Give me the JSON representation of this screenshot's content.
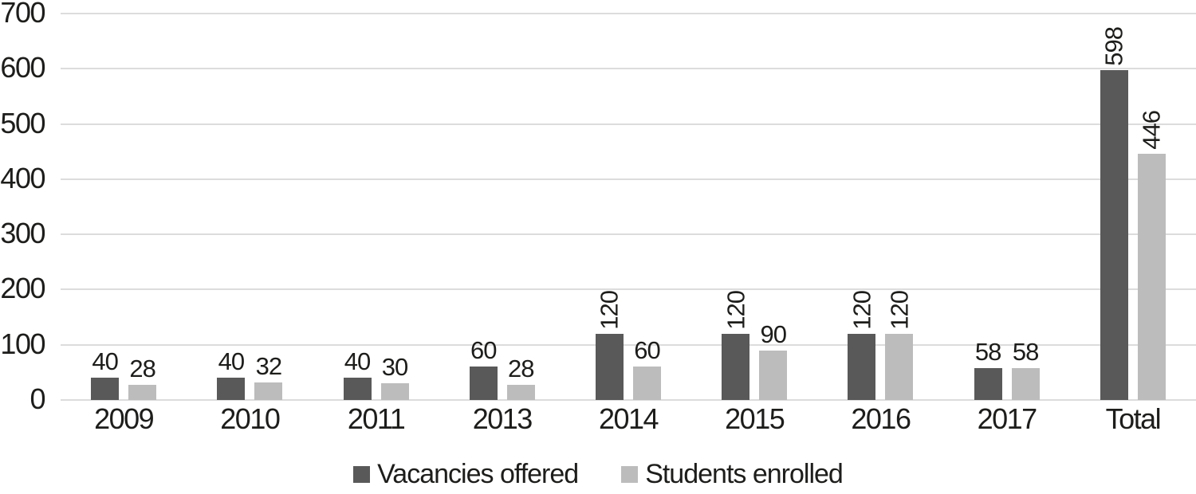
{
  "figure": {
    "background": "#ffffff",
    "text_color": "#1d1d1b",
    "gridline_color": "#dcdcdc"
  },
  "chart_data": {
    "type": "bar",
    "title": "",
    "categories": [
      "2009",
      "2010",
      "2011",
      "2013",
      "2014",
      "2015",
      "2016",
      "2017",
      "Total"
    ],
    "series": [
      {
        "name": "Vacancies offered",
        "color": "#595959",
        "values": [
          40,
          40,
          40,
          60,
          120,
          120,
          120,
          58,
          598
        ]
      },
      {
        "name": "Students enrolled",
        "color": "#bcbcbc",
        "values": [
          28,
          32,
          30,
          28,
          60,
          90,
          120,
          58,
          446
        ]
      }
    ],
    "y_axis": {
      "min": 0,
      "max": 700,
      "step": 100,
      "tick_labels": [
        "0",
        "100",
        "200",
        "300",
        "400",
        "500",
        "600",
        "700"
      ]
    },
    "x_axis": {
      "tick_labels": [
        "2009",
        "2010",
        "2011",
        "2013",
        "2014",
        "2015",
        "2016",
        "2017",
        "Total"
      ]
    },
    "grid": "horizontal",
    "legend_position": "bottom",
    "data_labels": "all",
    "data_label_rotation_rule": "vertical when value >= 100"
  },
  "legend": {
    "items": [
      {
        "label": "Vacancies offered",
        "swatch_color": "#595959"
      },
      {
        "label": "Students enrolled",
        "swatch_color": "#bcbcbc"
      }
    ]
  }
}
